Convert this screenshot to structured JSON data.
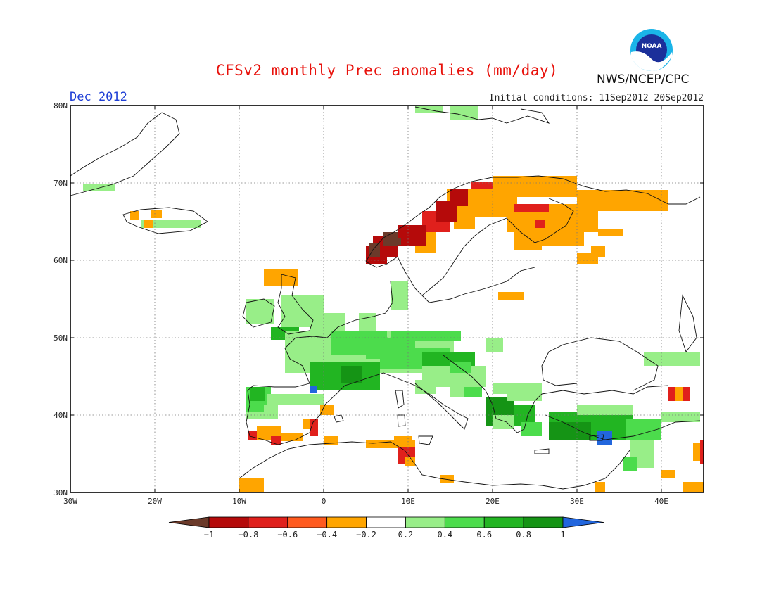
{
  "header": {
    "title": "CFSv2 monthly Prec anomalies (mm/day)",
    "period": "Dec 2012",
    "initial_conditions": "Initial conditions: 11Sep2012—20Sep2012",
    "agency": "NWS/NCEP/CPC",
    "logo_text": "NOAA"
  },
  "map": {
    "lat_ticks": [
      "30N",
      "40N",
      "50N",
      "60N",
      "70N",
      "80N"
    ],
    "lon_ticks": [
      "30W",
      "20W",
      "10W",
      "0",
      "10E",
      "20E",
      "30E",
      "40E"
    ],
    "extent": {
      "lon": [
        -30,
        45
      ],
      "lat": [
        30,
        80
      ]
    }
  },
  "colorbar": {
    "labels": [
      "−1",
      "−0.8",
      "−0.6",
      "−0.4",
      "−0.2",
      "0.2",
      "0.4",
      "0.6",
      "0.8",
      "1"
    ],
    "colors": [
      "#6b3a2a",
      "#b50a0a",
      "#e0201c",
      "#ff5a1e",
      "#ffa500",
      "#ffffff",
      "#98ee88",
      "#4cdc4c",
      "#22b522",
      "#159415",
      "#2266dd"
    ]
  },
  "colors": {
    "dark_brown": "#6b3a2a",
    "dark_red": "#b50a0a",
    "red": "#e0201c",
    "orange_red": "#ff5a1e",
    "orange": "#ffa500",
    "light_green": "#98ee88",
    "green": "#4cdc4c",
    "mid_green": "#22b522",
    "dark_green": "#159415",
    "blue": "#2266dd"
  }
}
